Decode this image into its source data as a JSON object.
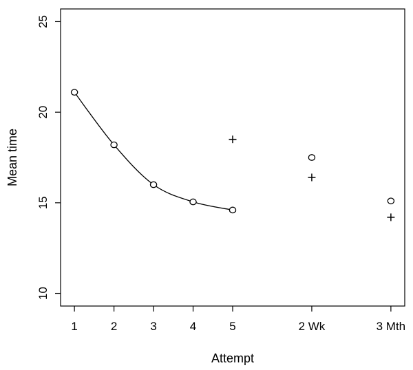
{
  "chart_data": {
    "type": "scatter",
    "xlabel": "Attempt",
    "ylabel": "Mean time",
    "ylim": [
      9.3,
      25.7
    ],
    "y_ticks": [
      10,
      15,
      20,
      25
    ],
    "x_ticks": [
      {
        "x": 1,
        "label": "1"
      },
      {
        "x": 2,
        "label": "2"
      },
      {
        "x": 3,
        "label": "3"
      },
      {
        "x": 4,
        "label": "4"
      },
      {
        "x": 5,
        "label": "5"
      },
      {
        "x": 7,
        "label": "2 Wk"
      },
      {
        "x": 9,
        "label": "3 Mth"
      }
    ],
    "xlim": [
      0.65,
      9.35
    ],
    "series": [
      {
        "marker": "circle",
        "connected_points": 5,
        "points": [
          {
            "x": 1,
            "y": 21.1
          },
          {
            "x": 2,
            "y": 18.2
          },
          {
            "x": 3,
            "y": 16.0
          },
          {
            "x": 4,
            "y": 15.05
          },
          {
            "x": 5,
            "y": 14.6
          },
          {
            "x": 7,
            "y": 17.5
          },
          {
            "x": 9,
            "y": 15.1
          }
        ]
      },
      {
        "marker": "plus",
        "points": [
          {
            "x": 5,
            "y": 18.5
          },
          {
            "x": 7,
            "y": 16.4
          },
          {
            "x": 9,
            "y": 14.2
          }
        ]
      }
    ],
    "grid": false
  }
}
